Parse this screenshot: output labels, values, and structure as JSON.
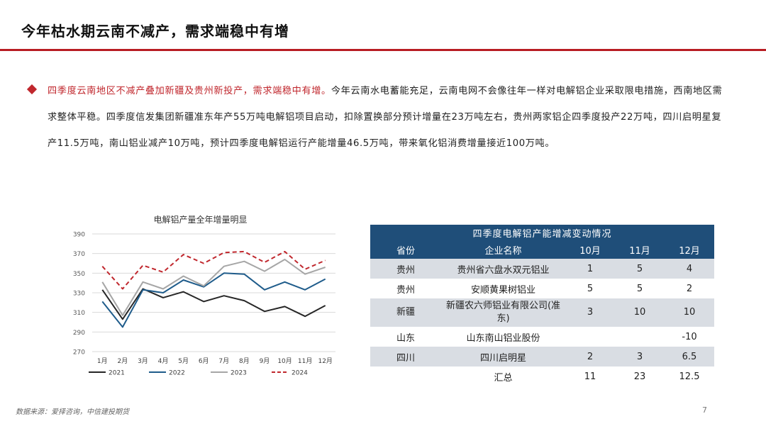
{
  "page": {
    "title": "今年枯水期云南不减产，需求端稳中有增",
    "source": "数据来源：爱择咨询，中信建投期货",
    "page_number": "7"
  },
  "bullet": {
    "highlight": "四季度云南地区不减产叠加新疆及贵州新投产，需求端稳中有增。",
    "body": "今年云南水电蓄能充足，云南电网不会像往年一样对电解铝企业采取限电措施，西南地区需求整体平稳。四季度信发集团新疆准东年产55万吨电解铝项目启动，扣除置换部分预计增量在23万吨左右，贵州两家铝企四季度投产22万吨，四川启明星复产11.5万吨，南山铝业减产10万吨，预计四季度电解铝运行产能增量46.5万吨，带来氧化铝消费增量接近100万吨。"
  },
  "chart_data": {
    "type": "line",
    "title": "电解铝产量全年增量明显",
    "categories": [
      "1月",
      "2月",
      "3月",
      "4月",
      "5月",
      "6月",
      "7月",
      "8月",
      "9月",
      "10月",
      "11月",
      "12月"
    ],
    "ylim": [
      270,
      390
    ],
    "yticks": [
      270,
      290,
      310,
      330,
      350,
      370,
      390
    ],
    "grid": true,
    "legend_position": "bottom",
    "series": [
      {
        "name": "2021",
        "color": "#262626",
        "dash": false,
        "values": [
          333,
          303,
          334,
          325,
          331,
          321,
          327,
          322,
          311,
          316,
          306,
          317
        ]
      },
      {
        "name": "2022",
        "color": "#1f5c8b",
        "dash": false,
        "values": [
          321,
          295,
          333,
          330,
          343,
          336,
          350,
          349,
          333,
          341,
          333,
          344
        ]
      },
      {
        "name": "2023",
        "color": "#a6a6a6",
        "dash": false,
        "values": [
          341,
          307,
          341,
          334,
          347,
          337,
          357,
          362,
          352,
          364,
          349,
          356
        ]
      },
      {
        "name": "2024",
        "color": "#c0272d",
        "dash": true,
        "values": [
          357,
          334,
          358,
          351,
          369,
          360,
          371,
          372,
          361,
          372,
          354,
          363
        ]
      }
    ]
  },
  "table": {
    "title": "四季度电解铝产能增减变动情况",
    "headers": [
      "省份",
      "企业名称",
      "10月",
      "11月",
      "12月"
    ],
    "rows": [
      [
        "贵州",
        "贵州省六盘水双元铝业",
        "1",
        "5",
        "4"
      ],
      [
        "贵州",
        "安顺黄果树铝业",
        "5",
        "5",
        "2"
      ],
      [
        "新疆",
        "新疆农六师铝业有限公司(准东)",
        "3",
        "10",
        "10"
      ],
      [
        "山东",
        "山东南山铝业股份",
        "",
        "",
        "-10"
      ],
      [
        "四川",
        "四川启明星",
        "2",
        "3",
        "6.5"
      ],
      [
        "",
        "汇总",
        "11",
        "23",
        "12.5"
      ]
    ]
  }
}
